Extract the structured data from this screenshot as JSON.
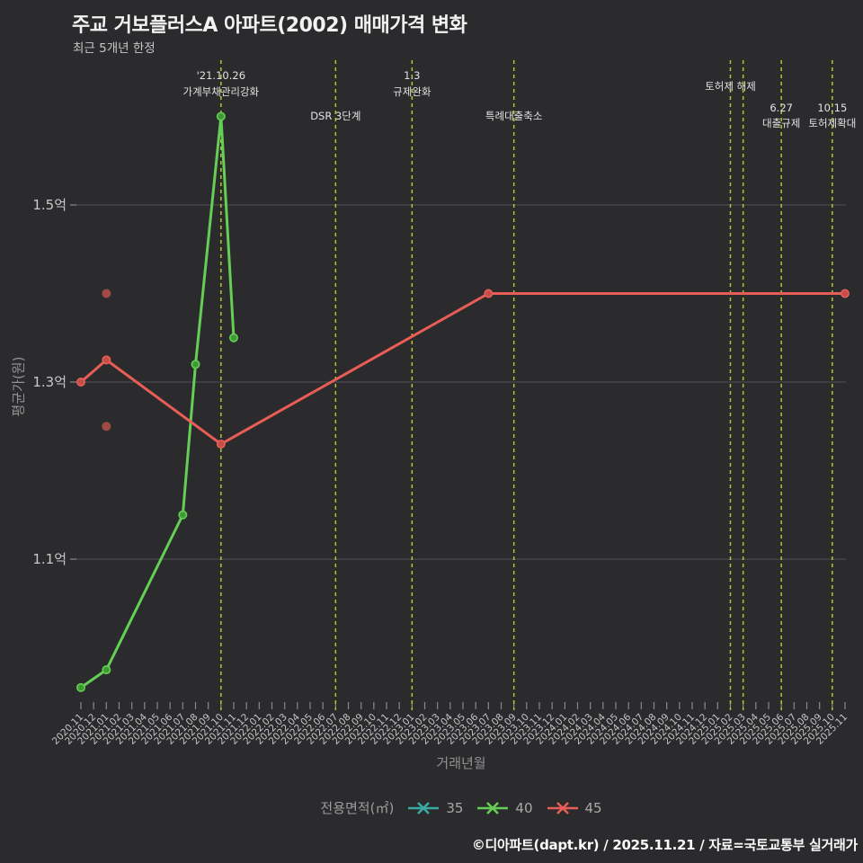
{
  "header": {
    "title": "주교 거보플러스A 아파트(2002) 매매가격 변화",
    "subtitle": "최근 5개년 한정"
  },
  "axes": {
    "y_title": "평균가(원)",
    "x_title": "거래년월"
  },
  "legend": {
    "title": "전용면적(㎡)",
    "items": [
      {
        "label": "35",
        "color": "#3aa8a2"
      },
      {
        "label": "40",
        "color": "#65cf55"
      },
      {
        "label": "45",
        "color": "#e85d56"
      }
    ]
  },
  "footer": {
    "credit": "©디아파트(dapt.kr) / 2025.11.21 / 자료=국토교통부 실거래가"
  },
  "colors": {
    "background": "#2b2b2e",
    "grid": "#46464a",
    "tick": "#8a8a8a",
    "tick_label": "#c6c6c6",
    "event_line": "#b9c42c",
    "event_label": "#e2e2e2"
  },
  "chart_data": {
    "type": "line",
    "title": "주교 거보플러스A 아파트(2002) 매매가격 변화",
    "xlabel": "거래년월",
    "ylabel": "평균가(원)",
    "ylim": [
      0.93,
      1.66
    ],
    "grid": "horizontal",
    "legend_position": "bottom-center",
    "y_axis": {
      "unit": "억",
      "ticks": [
        {
          "label": "1.5억",
          "value": 1.5
        },
        {
          "label": "1.3억",
          "value": 1.3
        },
        {
          "label": "1.1억",
          "value": 1.1
        }
      ]
    },
    "x_categories": [
      "2020.11",
      "2020.12",
      "2021.01",
      "2021.02",
      "2021.03",
      "2021.04",
      "2021.05",
      "2021.06",
      "2021.07",
      "2021.08",
      "2021.09",
      "2021.10",
      "2021.11",
      "2021.12",
      "2022.01",
      "2022.02",
      "2022.03",
      "2022.04",
      "2022.05",
      "2022.06",
      "2022.07",
      "2022.08",
      "2022.09",
      "2022.10",
      "2022.11",
      "2022.12",
      "2023.01",
      "2023.02",
      "2023.03",
      "2023.04",
      "2023.05",
      "2023.06",
      "2023.07",
      "2023.08",
      "2023.09",
      "2023.10",
      "2023.11",
      "2023.12",
      "2024.01",
      "2024.02",
      "2024.03",
      "2024.04",
      "2024.05",
      "2024.06",
      "2024.07",
      "2024.08",
      "2024.09",
      "2024.10",
      "2024.11",
      "2024.12",
      "2025.01",
      "2025.02",
      "2025.03",
      "2025.04",
      "2025.05",
      "2025.06",
      "2025.07",
      "2025.08",
      "2025.09",
      "2025.10",
      "2025.11"
    ],
    "series": [
      {
        "name": "35",
        "color": "#3aa8a2",
        "marker_fill": "#2e827d",
        "points": []
      },
      {
        "name": "40",
        "color": "#65cf55",
        "marker_fill": "#3f9a35",
        "points": [
          {
            "x": "2020.11",
            "y": 0.955
          },
          {
            "x": "2021.01",
            "y": 0.975
          },
          {
            "x": "2021.07",
            "y": 1.15
          },
          {
            "x": "2021.08",
            "y": 1.32
          },
          {
            "x": "2021.10",
            "y": 1.6
          },
          {
            "x": "2021.11",
            "y": 1.35
          }
        ]
      },
      {
        "name": "45",
        "color": "#e85d56",
        "marker_fill": "#c44f4a",
        "scatter_color": "#a04a46",
        "points": [
          {
            "x": "2020.11",
            "y": 1.3
          },
          {
            "x": "2021.01",
            "y": 1.325
          },
          {
            "x": "2021.10",
            "y": 1.23
          },
          {
            "x": "2023.07",
            "y": 1.4
          },
          {
            "x": "2025.11",
            "y": 1.4
          }
        ],
        "scatter": [
          {
            "x": "2021.01",
            "y": 1.4
          },
          {
            "x": "2021.01",
            "y": 1.25
          }
        ]
      }
    ],
    "events": [
      {
        "x": "2021.10",
        "labels": [
          {
            "text": "'21.10.26",
            "y": 88
          },
          {
            "text": "가계부채관리강화",
            "y": 106
          }
        ]
      },
      {
        "x": "2022.07",
        "labels": [
          {
            "text": "DSR 3단계",
            "y": 133
          }
        ]
      },
      {
        "x": "2023.01",
        "labels": [
          {
            "text": "1.3",
            "y": 88
          },
          {
            "text": "규제완화",
            "y": 106
          }
        ]
      },
      {
        "x": "2023.09",
        "labels": [
          {
            "text": "특례대출축소",
            "y": 133
          }
        ]
      },
      {
        "x": "2025.02",
        "labels": [
          {
            "text": "토허제 해제",
            "y": 100
          }
        ]
      },
      {
        "x": "2025.03",
        "labels": []
      },
      {
        "x": "2025.06",
        "labels": [
          {
            "text": "6.27",
            "y": 124
          },
          {
            "text": "대출규제",
            "y": 141
          }
        ]
      },
      {
        "x": "2025.10",
        "labels": [
          {
            "text": "10.15",
            "y": 124
          },
          {
            "text": "토허제확대",
            "y": 141
          }
        ]
      }
    ]
  }
}
